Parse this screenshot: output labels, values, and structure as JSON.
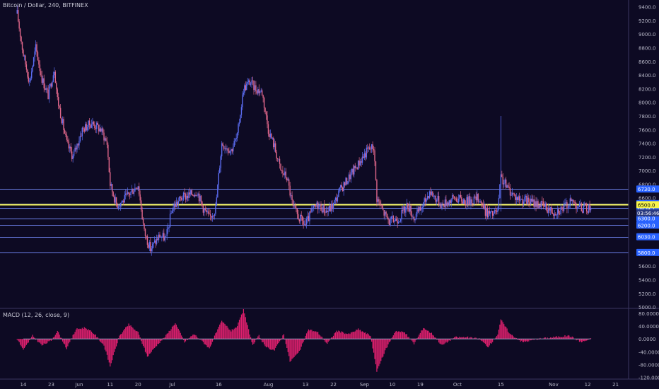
{
  "header": {
    "title": "Bitcoin / Dollar, 240, BITFINEX"
  },
  "macd_panel": {
    "title": "MACD (12, 26, close, 9)"
  },
  "colors": {
    "background": "#0d0a23",
    "candle_up": "#5b6cf0",
    "candle_down": "#e0678a",
    "level_line": "#6b7fe8",
    "highlight_line": "#f7f44b",
    "macd_hist": "#e0206e",
    "axis_text": "#b8b8c8",
    "label_bg": "#2962ff"
  },
  "chart_data": [
    {
      "type": "line",
      "title": "Bitcoin / Dollar, 240, BITFINEX",
      "series_kind": "candlestick",
      "y_ticks": [
        "9400.0",
        "9200.0",
        "9000.0",
        "8800.0",
        "8600.0",
        "8400.0",
        "8200.0",
        "8000.0",
        "7800.0",
        "7600.0",
        "7400.0",
        "7200.0",
        "7000.0",
        "6800.0",
        "6600.0",
        "5600.0",
        "5400.0",
        "5200.0",
        "5000.0"
      ],
      "ylim": [
        4980,
        9500
      ],
      "x_ticks": [
        "14",
        "23",
        "Jun",
        "11",
        "20",
        "Jul",
        "16",
        "Aug",
        "13",
        "22",
        "Sep",
        "10",
        "19",
        "Oct",
        "15",
        "Nov",
        "12",
        "21"
      ],
      "x_range": [
        "2018-05-14",
        "2018-11-22"
      ],
      "grid": false,
      "horizontal_levels": [
        {
          "label": "6730.0",
          "value": 6730
        },
        {
          "label": "6515.0",
          "value": 6515
        },
        {
          "label": "6454.1",
          "value": 6454
        },
        {
          "label": "6300.0",
          "value": 6300
        },
        {
          "label": "6200.0",
          "value": 6200
        },
        {
          "label": "6030.0",
          "value": 6030
        },
        {
          "label": "5800.0",
          "value": 5800
        }
      ],
      "highlight_level": {
        "label": "6500.0",
        "value": 6500
      },
      "countdown_label": "03:56:46",
      "close_points": [
        {
          "x": "2018-05-12",
          "y": 9300
        },
        {
          "x": "2018-05-14",
          "y": 8700
        },
        {
          "x": "2018-05-16",
          "y": 8300
        },
        {
          "x": "2018-05-18",
          "y": 8800
        },
        {
          "x": "2018-05-20",
          "y": 8350
        },
        {
          "x": "2018-05-22",
          "y": 8100
        },
        {
          "x": "2018-05-24",
          "y": 8500
        },
        {
          "x": "2018-05-25",
          "y": 8050
        },
        {
          "x": "2018-05-28",
          "y": 7400
        },
        {
          "x": "2018-05-30",
          "y": 7200
        },
        {
          "x": "2018-06-02",
          "y": 7600
        },
        {
          "x": "2018-06-05",
          "y": 7700
        },
        {
          "x": "2018-06-08",
          "y": 7600
        },
        {
          "x": "2018-06-10",
          "y": 7400
        },
        {
          "x": "2018-06-11",
          "y": 6800
        },
        {
          "x": "2018-06-13",
          "y": 6500
        },
        {
          "x": "2018-06-15",
          "y": 6550
        },
        {
          "x": "2018-06-18",
          "y": 6700
        },
        {
          "x": "2018-06-20",
          "y": 6800
        },
        {
          "x": "2018-06-22",
          "y": 6100
        },
        {
          "x": "2018-06-24",
          "y": 5850
        },
        {
          "x": "2018-06-27",
          "y": 6050
        },
        {
          "x": "2018-06-29",
          "y": 6000
        },
        {
          "x": "2018-07-01",
          "y": 6450
        },
        {
          "x": "2018-07-04",
          "y": 6600
        },
        {
          "x": "2018-07-07",
          "y": 6650
        },
        {
          "x": "2018-07-09",
          "y": 6700
        },
        {
          "x": "2018-07-11",
          "y": 6450
        },
        {
          "x": "2018-07-13",
          "y": 6300
        },
        {
          "x": "2018-07-15",
          "y": 6450
        },
        {
          "x": "2018-07-17",
          "y": 7400
        },
        {
          "x": "2018-07-20",
          "y": 7300
        },
        {
          "x": "2018-07-22",
          "y": 7500
        },
        {
          "x": "2018-07-24",
          "y": 8200
        },
        {
          "x": "2018-07-26",
          "y": 8300
        },
        {
          "x": "2018-07-28",
          "y": 8200
        },
        {
          "x": "2018-07-30",
          "y": 8150
        },
        {
          "x": "2018-08-01",
          "y": 7600
        },
        {
          "x": "2018-08-03",
          "y": 7350
        },
        {
          "x": "2018-08-05",
          "y": 7000
        },
        {
          "x": "2018-08-07",
          "y": 6900
        },
        {
          "x": "2018-08-09",
          "y": 6450
        },
        {
          "x": "2018-08-11",
          "y": 6300
        },
        {
          "x": "2018-08-13",
          "y": 6200
        },
        {
          "x": "2018-08-15",
          "y": 6400
        },
        {
          "x": "2018-08-17",
          "y": 6500
        },
        {
          "x": "2018-08-20",
          "y": 6400
        },
        {
          "x": "2018-08-22",
          "y": 6500
        },
        {
          "x": "2018-08-24",
          "y": 6700
        },
        {
          "x": "2018-08-27",
          "y": 6900
        },
        {
          "x": "2018-08-30",
          "y": 7100
        },
        {
          "x": "2018-09-02",
          "y": 7300
        },
        {
          "x": "2018-09-04",
          "y": 7350
        },
        {
          "x": "2018-09-05",
          "y": 6600
        },
        {
          "x": "2018-09-07",
          "y": 6400
        },
        {
          "x": "2018-09-09",
          "y": 6250
        },
        {
          "x": "2018-09-12",
          "y": 6300
        },
        {
          "x": "2018-09-15",
          "y": 6500
        },
        {
          "x": "2018-09-17",
          "y": 6300
        },
        {
          "x": "2018-09-20",
          "y": 6500
        },
        {
          "x": "2018-09-22",
          "y": 6700
        },
        {
          "x": "2018-09-24",
          "y": 6600
        },
        {
          "x": "2018-09-26",
          "y": 6500
        },
        {
          "x": "2018-09-30",
          "y": 6600
        },
        {
          "x": "2018-10-04",
          "y": 6550
        },
        {
          "x": "2018-10-08",
          "y": 6600
        },
        {
          "x": "2018-10-10",
          "y": 6400
        },
        {
          "x": "2018-10-12",
          "y": 6350
        },
        {
          "x": "2018-10-14",
          "y": 6400
        },
        {
          "x": "2018-10-15",
          "y": 6900
        },
        {
          "x": "2018-10-17",
          "y": 6750
        },
        {
          "x": "2018-10-20",
          "y": 6600
        },
        {
          "x": "2018-10-24",
          "y": 6550
        },
        {
          "x": "2018-10-28",
          "y": 6500
        },
        {
          "x": "2018-11-01",
          "y": 6400
        },
        {
          "x": "2018-11-04",
          "y": 6450
        },
        {
          "x": "2018-11-07",
          "y": 6550
        },
        {
          "x": "2018-11-10",
          "y": 6450
        },
        {
          "x": "2018-11-13",
          "y": 6450
        }
      ]
    },
    {
      "type": "bar",
      "title": "MACD (12, 26, close, 9)",
      "y_ticks": [
        "80.0000",
        "40.0000",
        "0.0000",
        "-40.0000",
        "-80.0000",
        "-120.0000"
      ],
      "ylim": [
        -125,
        95
      ],
      "x_range": [
        "2018-05-14",
        "2018-11-22"
      ],
      "histogram_points": [
        {
          "x": "2018-05-12",
          "y": 0
        },
        {
          "x": "2018-05-14",
          "y": -35
        },
        {
          "x": "2018-05-17",
          "y": 10
        },
        {
          "x": "2018-05-20",
          "y": -20
        },
        {
          "x": "2018-05-23",
          "y": -5
        },
        {
          "x": "2018-05-25",
          "y": 25
        },
        {
          "x": "2018-05-28",
          "y": -30
        },
        {
          "x": "2018-05-31",
          "y": 30
        },
        {
          "x": "2018-06-03",
          "y": 35
        },
        {
          "x": "2018-06-06",
          "y": 15
        },
        {
          "x": "2018-06-09",
          "y": -20
        },
        {
          "x": "2018-06-11",
          "y": -85
        },
        {
          "x": "2018-06-14",
          "y": 10
        },
        {
          "x": "2018-06-17",
          "y": 45
        },
        {
          "x": "2018-06-20",
          "y": 20
        },
        {
          "x": "2018-06-23",
          "y": -55
        },
        {
          "x": "2018-06-26",
          "y": -20
        },
        {
          "x": "2018-06-29",
          "y": 10
        },
        {
          "x": "2018-07-02",
          "y": 50
        },
        {
          "x": "2018-07-05",
          "y": -10
        },
        {
          "x": "2018-07-08",
          "y": 15
        },
        {
          "x": "2018-07-11",
          "y": -10
        },
        {
          "x": "2018-07-13",
          "y": -30
        },
        {
          "x": "2018-07-15",
          "y": 15
        },
        {
          "x": "2018-07-17",
          "y": 55
        },
        {
          "x": "2018-07-20",
          "y": 25
        },
        {
          "x": "2018-07-22",
          "y": 40
        },
        {
          "x": "2018-07-24",
          "y": 90
        },
        {
          "x": "2018-07-27",
          "y": -20
        },
        {
          "x": "2018-07-29",
          "y": 10
        },
        {
          "x": "2018-07-31",
          "y": -25
        },
        {
          "x": "2018-08-03",
          "y": -35
        },
        {
          "x": "2018-08-06",
          "y": 15
        },
        {
          "x": "2018-08-08",
          "y": -70
        },
        {
          "x": "2018-08-11",
          "y": -40
        },
        {
          "x": "2018-08-14",
          "y": 30
        },
        {
          "x": "2018-08-17",
          "y": 20
        },
        {
          "x": "2018-08-20",
          "y": -15
        },
        {
          "x": "2018-08-23",
          "y": 25
        },
        {
          "x": "2018-08-27",
          "y": 15
        },
        {
          "x": "2018-08-30",
          "y": 30
        },
        {
          "x": "2018-09-03",
          "y": 10
        },
        {
          "x": "2018-09-05",
          "y": -100
        },
        {
          "x": "2018-09-08",
          "y": -30
        },
        {
          "x": "2018-09-11",
          "y": 25
        },
        {
          "x": "2018-09-14",
          "y": 20
        },
        {
          "x": "2018-09-17",
          "y": -15
        },
        {
          "x": "2018-09-20",
          "y": 35
        },
        {
          "x": "2018-09-23",
          "y": 15
        },
        {
          "x": "2018-09-26",
          "y": -20
        },
        {
          "x": "2018-09-30",
          "y": 5
        },
        {
          "x": "2018-10-04",
          "y": 5
        },
        {
          "x": "2018-10-08",
          "y": 0
        },
        {
          "x": "2018-10-11",
          "y": -25
        },
        {
          "x": "2018-10-14",
          "y": 15
        },
        {
          "x": "2018-10-15",
          "y": 60
        },
        {
          "x": "2018-10-18",
          "y": 15
        },
        {
          "x": "2018-10-22",
          "y": -10
        },
        {
          "x": "2018-10-27",
          "y": 0
        },
        {
          "x": "2018-11-01",
          "y": 5
        },
        {
          "x": "2018-11-06",
          "y": 10
        },
        {
          "x": "2018-11-10",
          "y": -10
        },
        {
          "x": "2018-11-13",
          "y": 0
        }
      ]
    }
  ]
}
